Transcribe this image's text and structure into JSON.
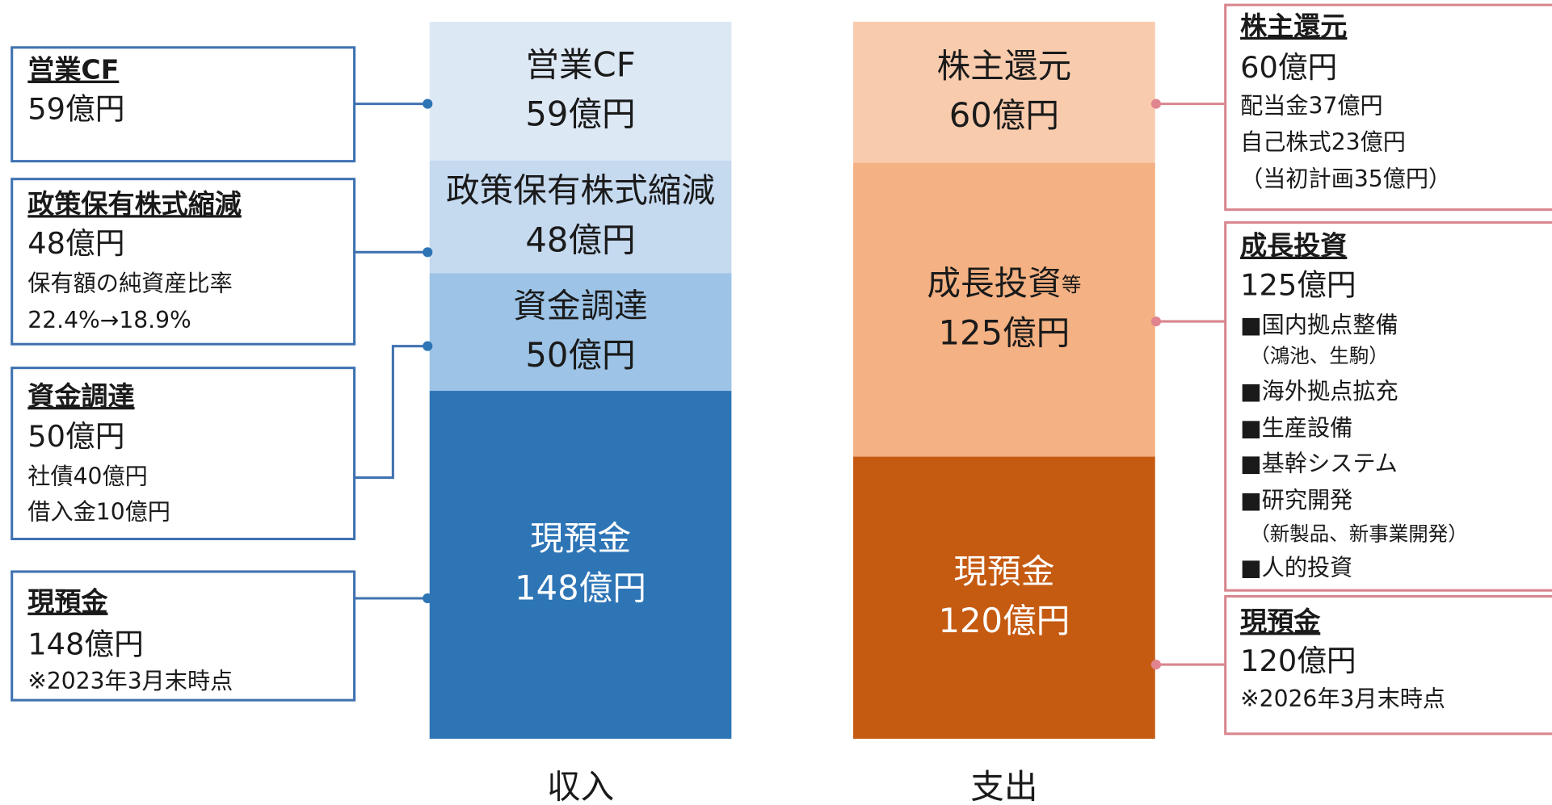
{
  "chart_data": {
    "type": "stacked_column",
    "columns": [
      {
        "name": "収入",
        "segments": [
          {
            "name": "営業CF",
            "value": 59,
            "value_label": "59億円",
            "color": "#dde8f5",
            "notes": []
          },
          {
            "name": "政策保有株式縮減",
            "value": 48,
            "value_label": "48億円",
            "color": "#c5d9ef",
            "notes": [
              "保有額の純資産比率",
              "22.4%→18.9%"
            ]
          },
          {
            "name": "資金調達",
            "value": 50,
            "value_label": "50億円",
            "color": "#9dc3e6",
            "notes": [
              "社債40億円",
              "借入金10億円"
            ]
          },
          {
            "name": "現預金",
            "value": 148,
            "value_label": "148億円",
            "color": "#2e75b6",
            "notes": [
              "※2023年3月末時点"
            ]
          }
        ]
      },
      {
        "name": "支出",
        "segments": [
          {
            "name": "株主還元",
            "value": 60,
            "value_label": "60億円",
            "color": "#f8cbad",
            "notes": [
              "配当金37億円",
              "自己株式23億円",
              "（当初計画35億円）"
            ]
          },
          {
            "name": "成長投資",
            "name_suffix": "等",
            "value": 125,
            "value_label": "125億円",
            "color": "#f4b183",
            "notes": [
              "■国内拠点整備",
              "（鴻池、生駒）",
              "■海外拠点拡充",
              "■生産設備",
              "■基幹システム",
              "■研究開発",
              "（新製品、新事業開発）",
              "■人的投資"
            ]
          },
          {
            "name": "現預金",
            "value": 120,
            "value_label": "120億円",
            "color": "#c55a11",
            "notes": [
              "※2026年3月末時点"
            ]
          }
        ]
      }
    ]
  }
}
